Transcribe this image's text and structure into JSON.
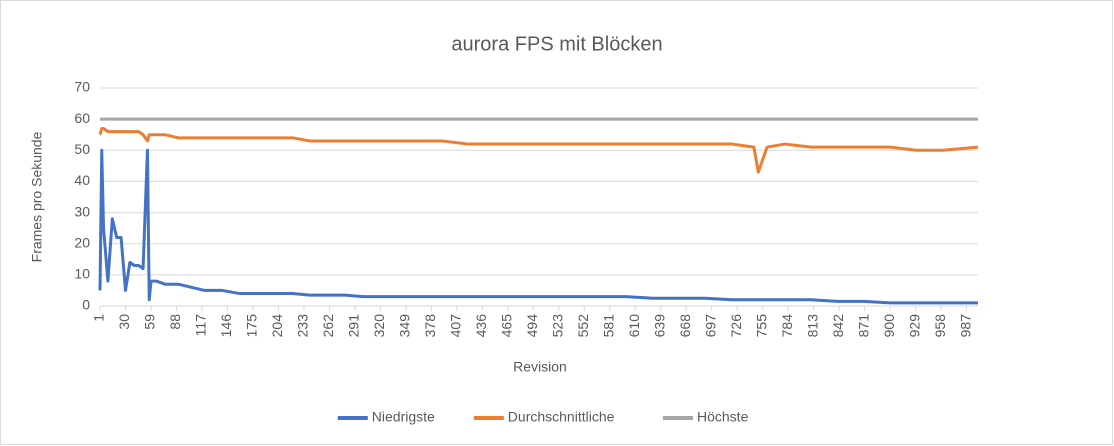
{
  "chart_data": {
    "type": "line",
    "title": "aurora FPS mit Blöcken",
    "x_label": "Revision",
    "y_label": "Frames pro Sekunde",
    "x": [
      1,
      3,
      5,
      10,
      15,
      20,
      25,
      30,
      35,
      40,
      45,
      50,
      55,
      57,
      59,
      65,
      75,
      90,
      105,
      120,
      140,
      160,
      180,
      200,
      220,
      240,
      260,
      280,
      300,
      330,
      360,
      390,
      420,
      450,
      480,
      510,
      540,
      570,
      600,
      630,
      660,
      690,
      720,
      745,
      750,
      760,
      780,
      810,
      840,
      870,
      900,
      930,
      960,
      1000
    ],
    "series": [
      {
        "name": "Niedrigste",
        "color": "#4472c4",
        "values": [
          5,
          50,
          25,
          8,
          28,
          22,
          22,
          5,
          14,
          13,
          13,
          12,
          50,
          2,
          8,
          8,
          7,
          7,
          6,
          5,
          5,
          4,
          4,
          4,
          4,
          3.5,
          3.5,
          3.5,
          3,
          3,
          3,
          3,
          3,
          3,
          3,
          3,
          3,
          3,
          3,
          2.5,
          2.5,
          2.5,
          2,
          2,
          2,
          2,
          2,
          2,
          1.5,
          1.5,
          1,
          1,
          1,
          1
        ]
      },
      {
        "name": "Durchschnittliche",
        "color": "#ed7d31",
        "values": [
          55,
          57,
          57,
          56,
          56,
          56,
          56,
          56,
          56,
          56,
          56,
          55,
          53,
          55,
          55,
          55,
          55,
          54,
          54,
          54,
          54,
          54,
          54,
          54,
          54,
          53,
          53,
          53,
          53,
          53,
          53,
          53,
          52,
          52,
          52,
          52,
          52,
          52,
          52,
          52,
          52,
          52,
          52,
          51,
          43,
          51,
          52,
          51,
          51,
          51,
          51,
          50,
          50,
          51
        ]
      },
      {
        "name": "Höchste",
        "color": "#a5a5a5",
        "values": [
          60,
          60,
          60,
          60,
          60,
          60,
          60,
          60,
          60,
          60,
          60,
          60,
          60,
          60,
          60,
          60,
          60,
          60,
          60,
          60,
          60,
          60,
          60,
          60,
          60,
          60,
          60,
          60,
          60,
          60,
          60,
          60,
          60,
          60,
          60,
          60,
          60,
          60,
          60,
          60,
          60,
          60,
          60,
          60,
          60,
          60,
          60,
          60,
          60,
          60,
          60,
          60,
          60,
          60
        ]
      }
    ],
    "xlim": [
      1,
      1000
    ],
    "xticks": [
      1,
      30,
      59,
      88,
      117,
      146,
      175,
      204,
      233,
      262,
      291,
      320,
      349,
      378,
      407,
      436,
      465,
      494,
      523,
      552,
      581,
      610,
      639,
      668,
      697,
      726,
      755,
      784,
      813,
      842,
      871,
      900,
      929,
      958,
      987
    ],
    "ylim": [
      0,
      70
    ],
    "yticks": [
      0,
      10,
      20,
      30,
      40,
      50,
      60,
      70
    ],
    "grid": true,
    "legend": "bottom"
  }
}
